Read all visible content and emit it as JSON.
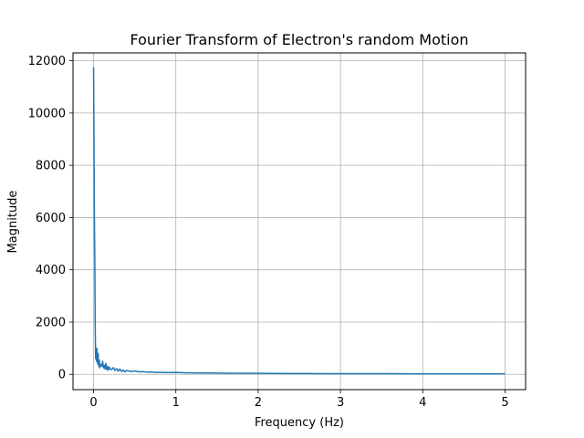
{
  "chart_data": {
    "type": "line",
    "title": "Fourier Transform of Electron's random Motion",
    "xlabel": "Frequency (Hz)",
    "ylabel": "Magnitude",
    "xlim": [
      -0.25,
      5.25
    ],
    "ylim": [
      -585,
      12300
    ],
    "grid": true,
    "legend": "none",
    "x_ticks": [
      0,
      1,
      2,
      3,
      4,
      5
    ],
    "x_tick_labels": [
      "0",
      "1",
      "2",
      "3",
      "4",
      "5"
    ],
    "y_ticks": [
      0,
      2000,
      4000,
      6000,
      8000,
      10000,
      12000
    ],
    "y_tick_labels": [
      "0",
      "2000",
      "4000",
      "6000",
      "8000",
      "10000",
      "12000"
    ],
    "series": [
      {
        "color": "#1f77b4",
        "x": [
          0.0,
          0.005,
          0.01,
          0.015,
          0.02,
          0.025,
          0.03,
          0.035,
          0.04,
          0.045,
          0.05,
          0.055,
          0.06,
          0.065,
          0.07,
          0.075,
          0.08,
          0.09,
          0.1,
          0.11,
          0.12,
          0.13,
          0.14,
          0.15,
          0.16,
          0.17,
          0.18,
          0.19,
          0.2,
          0.22,
          0.24,
          0.26,
          0.28,
          0.3,
          0.32,
          0.34,
          0.36,
          0.38,
          0.4,
          0.45,
          0.5,
          0.55,
          0.6,
          0.65,
          0.7,
          0.75,
          0.8,
          0.9,
          1.0,
          1.1,
          1.2,
          1.3,
          1.4,
          1.5,
          1.6,
          1.8,
          2.0,
          2.2,
          2.4,
          2.6,
          2.8,
          3.0,
          3.2,
          3.4,
          3.6,
          3.8,
          4.0,
          4.2,
          4.4,
          4.6,
          4.8,
          5.0
        ],
        "y": [
          11750,
          9000,
          6000,
          4300,
          1800,
          600,
          900,
          500,
          1000,
          650,
          400,
          800,
          450,
          300,
          550,
          250,
          400,
          350,
          300,
          500,
          250,
          350,
          200,
          420,
          180,
          300,
          160,
          280,
          220,
          180,
          260,
          150,
          220,
          120,
          200,
          110,
          160,
          100,
          150,
          110,
          130,
          95,
          105,
          85,
          90,
          75,
          80,
          70,
          75,
          60,
          55,
          50,
          58,
          48,
          45,
          40,
          38,
          35,
          32,
          30,
          28,
          27,
          25,
          26,
          24,
          23,
          22,
          21,
          22,
          20,
          19,
          20
        ]
      }
    ]
  }
}
